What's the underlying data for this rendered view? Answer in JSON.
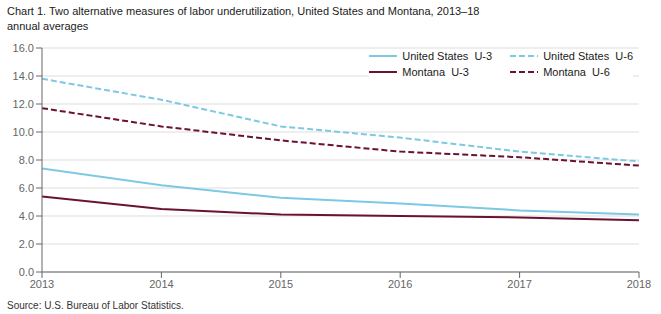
{
  "chart_data": {
    "type": "line",
    "title": "Chart 1. Two alternative measures of labor underutilization, United States and Montana, 2013–18",
    "subtitle": "annual averages",
    "annotations": [
      "Source: U.S. Bureau of Labor Statistics."
    ],
    "x": [
      2013,
      2014,
      2015,
      2016,
      2017,
      2018
    ],
    "xlim": [
      2013,
      2018
    ],
    "xticks": [
      2013,
      2014,
      2015,
      2016,
      2017,
      2018
    ],
    "ylim": [
      0.0,
      16.0
    ],
    "yticks": [
      {
        "value": 0,
        "label": "0.0"
      },
      {
        "value": 2,
        "label": "2.0"
      },
      {
        "value": 4,
        "label": "4.0"
      },
      {
        "value": 6,
        "label": "6.0"
      },
      {
        "value": 8,
        "label": "8.0"
      },
      {
        "value": 10,
        "label": "10.0"
      },
      {
        "value": 12,
        "label": "12.0"
      },
      {
        "value": 14,
        "label": "14.0"
      },
      {
        "value": 16,
        "label": "16.0"
      }
    ],
    "grid": true,
    "legend": "upper right",
    "series": [
      {
        "name": "United States  U-3",
        "color": "#7ec8e3",
        "line_style": "solid",
        "values": [
          7.4,
          6.2,
          5.3,
          4.9,
          4.4,
          4.1
        ]
      },
      {
        "name": "United States  U-6",
        "color": "#7ec8e3",
        "line_style": "dashed",
        "values": [
          13.8,
          12.3,
          10.4,
          9.6,
          8.6,
          7.9
        ]
      },
      {
        "name": "Montana  U-3",
        "color": "#6b1232",
        "line_style": "solid",
        "values": [
          5.4,
          4.5,
          4.1,
          4.0,
          3.9,
          3.7
        ]
      },
      {
        "name": "Montana  U-6",
        "color": "#6b1232",
        "line_style": "dashed",
        "values": [
          11.7,
          10.4,
          9.4,
          8.6,
          8.2,
          7.6
        ]
      }
    ]
  }
}
